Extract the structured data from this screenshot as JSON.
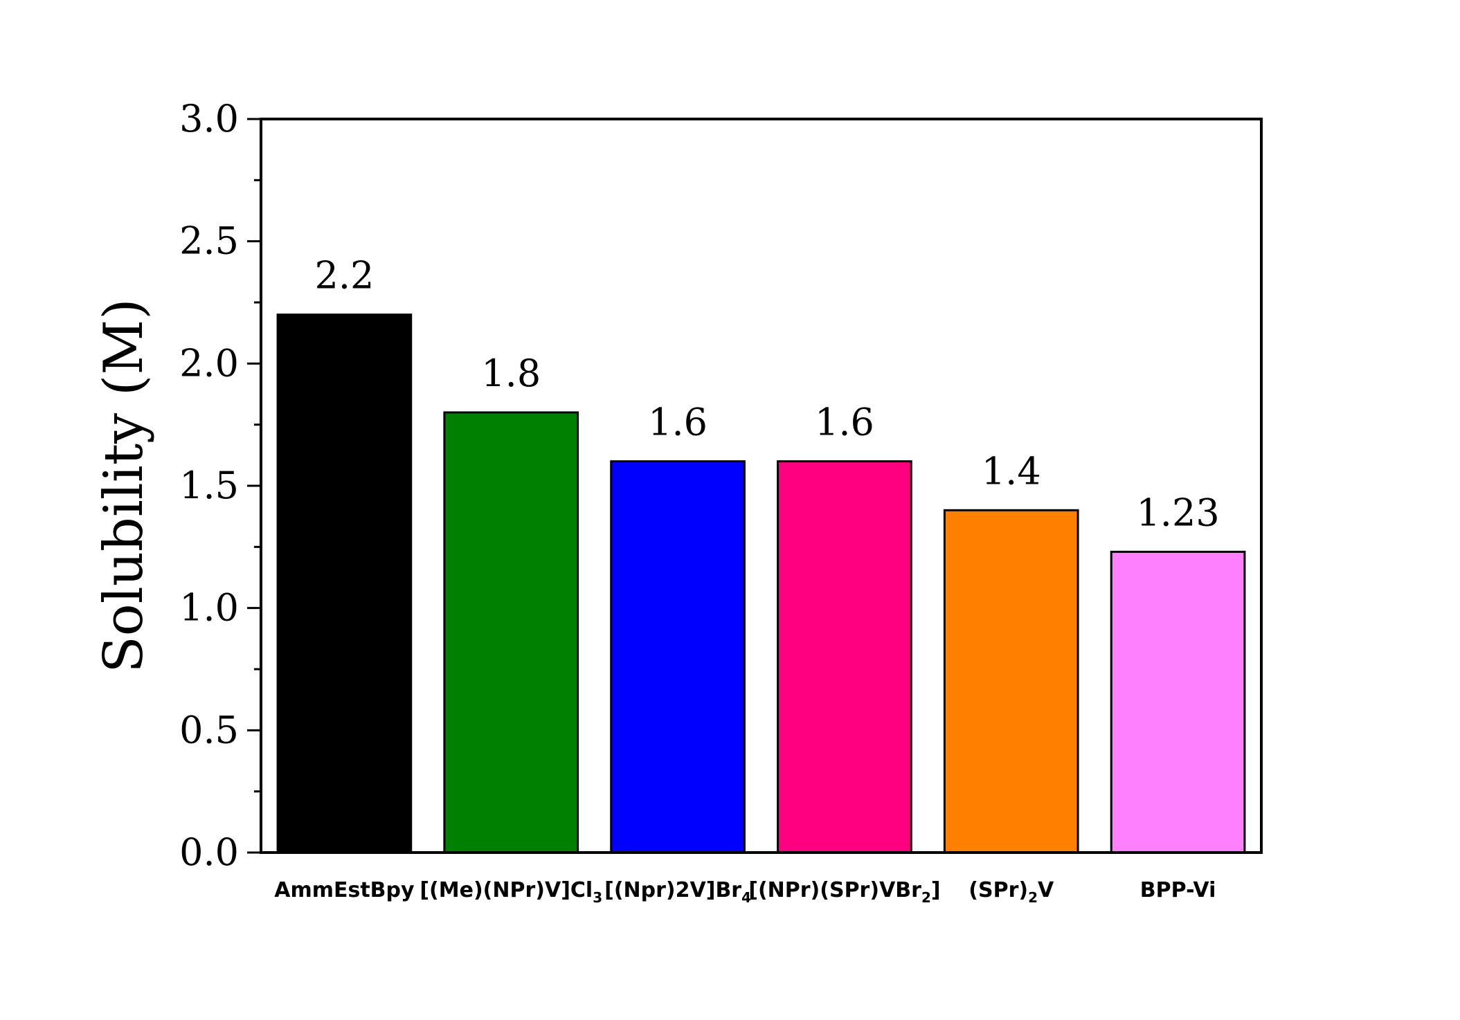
{
  "chart_data": {
    "type": "bar",
    "title": "",
    "xlabel": "",
    "ylabel": "Solubility (M)",
    "ylim": [
      0,
      3.0
    ],
    "yticks": [
      "0.0",
      "0.5",
      "1.0",
      "1.5",
      "2.0",
      "2.5",
      "3.0"
    ],
    "grid": false,
    "categories": [
      {
        "parts": [
          [
            "AmmEstBpy",
            ""
          ]
        ]
      },
      {
        "parts": [
          [
            "[(Me)(NPr)V]Cl",
            ""
          ],
          [
            "3",
            "sub"
          ]
        ]
      },
      {
        "parts": [
          [
            "[(Npr)2V]Br",
            ""
          ],
          [
            "4",
            "sub"
          ]
        ]
      },
      {
        "parts": [
          [
            "[(NPr)(SPr)VBr",
            ""
          ],
          [
            "2",
            "sub"
          ],
          [
            "]",
            ""
          ]
        ]
      },
      {
        "parts": [
          [
            "(SPr)",
            ""
          ],
          [
            "2",
            "sub"
          ],
          [
            "V",
            ""
          ]
        ]
      },
      {
        "parts": [
          [
            "BPP-Vi",
            ""
          ]
        ]
      }
    ],
    "values": [
      2.2,
      1.8,
      1.6,
      1.6,
      1.4,
      1.23
    ],
    "value_labels": [
      "2.2",
      "1.8",
      "1.6",
      "1.6",
      "1.4",
      "1.23"
    ],
    "colors": [
      "#000000",
      "#008000",
      "#0000FF",
      "#FF0080",
      "#FF8000",
      "#FF80FF"
    ]
  }
}
